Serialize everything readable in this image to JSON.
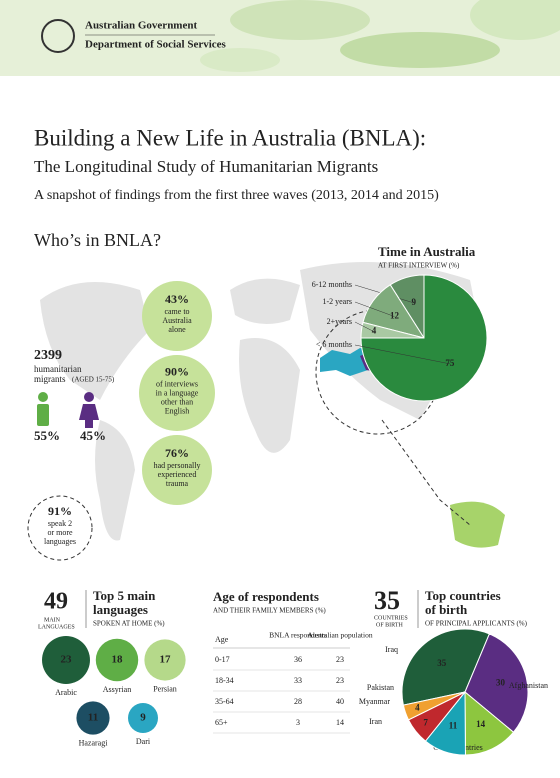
{
  "header": {
    "line1": "Australian Government",
    "line2": "Department of Social Services"
  },
  "title": "Building a New Life in Australia (BNLA):",
  "subtitle": "The Longitudinal Study of Humanitarian Migrants",
  "snapshot": "A snapshot of findings from the first three waves (2013, 2014 and 2015)",
  "section_title": "Who’s in BNLA?",
  "participants": {
    "count": "2399",
    "label1": "humanitarian",
    "label2": "migrants",
    "note": "(AGED 15-75)",
    "male": "55%",
    "female": "45%"
  },
  "facts": [
    {
      "value": "43%",
      "lines": [
        "came to",
        "Australia",
        "alone"
      ]
    },
    {
      "value": "90%",
      "lines": [
        "of interviews",
        "in a language",
        "other than",
        "English"
      ]
    },
    {
      "value": "76%",
      "lines": [
        "had personally",
        "experienced",
        "trauma"
      ]
    },
    {
      "value": "91%",
      "lines": [
        "speak 2",
        "or more",
        "languages"
      ]
    }
  ],
  "languages": {
    "count": "49",
    "count_label": "MAIN",
    "count_label2": "LANGUAGES",
    "title1": "Top 5 main",
    "title2": "languages",
    "subtitle": "SPOKEN AT HOME (%)",
    "items": [
      {
        "name": "Arabic",
        "value": 23,
        "color": "#1f5e3a"
      },
      {
        "name": "Assyrian",
        "value": 18,
        "color": "#5fae46"
      },
      {
        "name": "Persian",
        "value": 17,
        "color": "#b5d98a"
      },
      {
        "name": "Hazaragi",
        "value": 11,
        "color": "#1d4e63"
      },
      {
        "name": "Dari",
        "value": 9,
        "color": "#2aa6c2"
      }
    ]
  },
  "age_table": {
    "title": "Age of respondents",
    "subtitle": "AND THEIR FAMILY MEMBERS (%)",
    "header": [
      "Age",
      "BNLA respondents",
      "Australian population"
    ],
    "rows": [
      [
        "0-17",
        36,
        23
      ],
      [
        "18-34",
        33,
        23
      ],
      [
        "35-64",
        28,
        40
      ],
      [
        "65+",
        3,
        14
      ]
    ]
  },
  "countries": {
    "count": "35",
    "count_label": "COUNTRIES",
    "count_label2": "OF BIRTH"
  },
  "chart_data": [
    {
      "type": "pie",
      "title": "Time in Australia",
      "subtitle": "AT FIRST INTERVIEW (%)",
      "categories": [
        "6-12 months",
        "1-2 years",
        "2+years",
        "< 6 months"
      ],
      "values": [
        9,
        12,
        4,
        75
      ],
      "colors": [
        "#5f8f63",
        "#7fab7c",
        "#a9c9a3",
        "#2a8a3e"
      ]
    },
    {
      "type": "pie",
      "title1": "Top countries",
      "title2": "of birth",
      "subtitle": "OF PRINCIPAL APPLICANTS (%)",
      "categories": [
        "Iraq",
        "Afghanistan",
        "Other countries",
        "Iran",
        "Myanmar",
        "Pakistan"
      ],
      "values": [
        35,
        30,
        14,
        11,
        7,
        4
      ],
      "colors": [
        "#1f5e3a",
        "#5a2d82",
        "#8dc63f",
        "#1aa3b5",
        "#c0282d",
        "#f0a030"
      ]
    }
  ]
}
